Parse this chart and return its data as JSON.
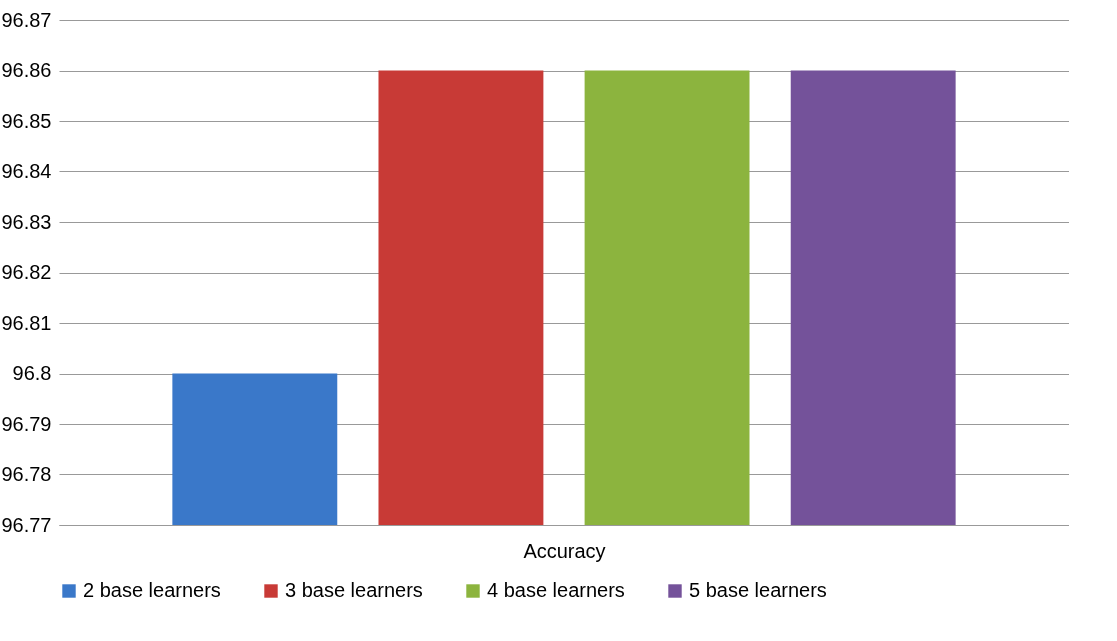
{
  "chart_data": {
    "type": "bar",
    "xlabel": "Accuracy",
    "categories": [
      null
    ],
    "series": [
      {
        "name": "2 base learners",
        "color": "#3a78c9",
        "values": [
          96.8
        ]
      },
      {
        "name": "3 base learners",
        "color": "#c83a36",
        "values": [
          96.86
        ]
      },
      {
        "name": "4 base learners",
        "color": "#8cb43e",
        "values": [
          96.86
        ]
      },
      {
        "name": "5 base learners",
        "color": "#74529a",
        "values": [
          96.86
        ]
      }
    ],
    "ylim": [
      96.77,
      96.87
    ],
    "yticks": [
      96.77,
      96.78,
      96.79,
      96.8,
      96.81,
      96.82,
      96.83,
      96.84,
      96.85,
      96.86,
      96.87
    ],
    "grid": "y",
    "legend": "bottom"
  }
}
